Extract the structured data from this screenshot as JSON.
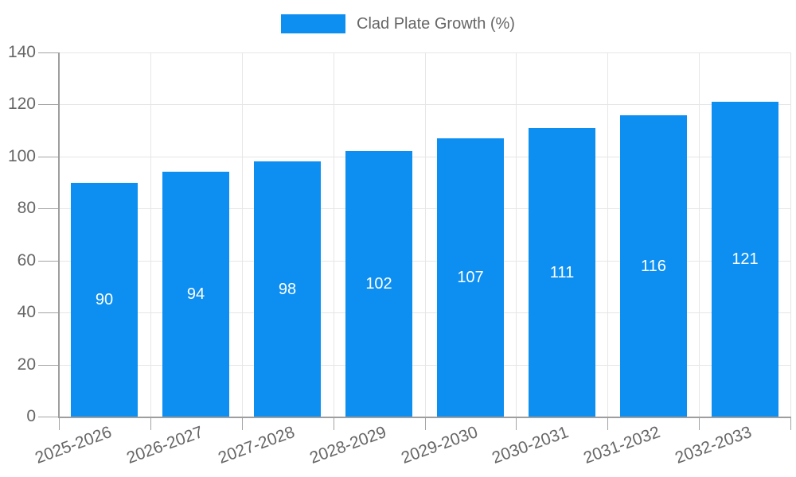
{
  "legend": {
    "label": "Clad Plate Growth (%)"
  },
  "colors": {
    "bar": "#0d8ff2",
    "axis_line": "#9e9e9e",
    "tick": "#a4a4a4",
    "gridline": "#e6e6e6",
    "axis_text": "#666666",
    "bar_label_text": "#ffffff",
    "background": "#ffffff"
  },
  "chart_data": {
    "type": "bar",
    "title": "",
    "categories": [
      "2025-2026",
      "2026-2027",
      "2027-2028",
      "2028-2029",
      "2029-2030",
      "2030-2031",
      "2031-2032",
      "2032-2033"
    ],
    "series": [
      {
        "name": "Clad Plate Growth (%)",
        "values": [
          90,
          94,
          98,
          102,
          107,
          111,
          116,
          121
        ]
      }
    ],
    "bar_value_labels": [
      "90",
      "94",
      "98",
      "102",
      "107",
      "111",
      "116",
      "121"
    ],
    "xlabel": "",
    "ylabel": "",
    "ylim": [
      0,
      140
    ],
    "yticks": [
      0,
      20,
      40,
      60,
      80,
      100,
      120,
      140
    ],
    "ytick_labels": [
      "0",
      "20",
      "40",
      "60",
      "80",
      "100",
      "120",
      "140"
    ],
    "x_label_rotation_deg": -20,
    "grid": true,
    "legend_position": "top-center"
  }
}
